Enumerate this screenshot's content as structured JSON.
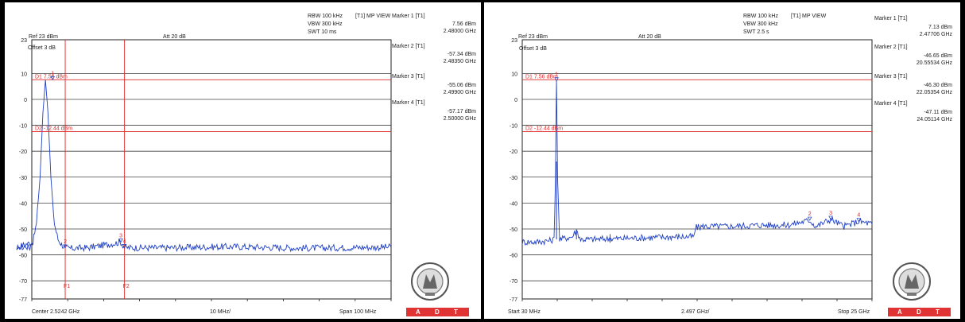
{
  "panels": [
    {
      "header": {
        "rbw": "RBW 100 kHz",
        "vbw": "VBW 300 kHz",
        "swt": "SWT 10 ms",
        "mode": "[T1] MP VIEW",
        "ref": "Ref 23 dBm",
        "att": "Att  20 dB",
        "offset": "Offset 3 dB"
      },
      "footer": {
        "left": "Center 2.5242 GHz",
        "mid": "10 MHz/",
        "right": "Span 100 MHz"
      },
      "markers": [
        {
          "label": "Marker 1 [T1]",
          "level": "7.56 dBm",
          "freq": "2.48000 GHz"
        },
        {
          "label": "Marker 2 [T1]",
          "level": "-57.34 dBm",
          "freq": "2.48350 GHz"
        },
        {
          "label": "Marker 3 [T1]",
          "level": "-55.06 dBm",
          "freq": "2.49900 GHz"
        },
        {
          "label": "Marker 4 [T1]",
          "level": "-57.17 dBm",
          "freq": "2.50000 GHz"
        }
      ],
      "lines": {
        "d1": "D1 7.56 dBm",
        "d2": "D2 -12.44 dBm",
        "f1": "F1",
        "f2": "F2"
      }
    },
    {
      "header": {
        "rbw": "RBW 100 kHz",
        "vbw": "VBW 300 kHz",
        "swt": "SWT 2.5 s",
        "mode": "[T1] MP VIEW",
        "ref": "Ref 23 dBm",
        "att": "Att  20 dB",
        "offset": "Offset 3 dB"
      },
      "footer": {
        "left": "Start 30 MHz",
        "mid": "2.497 GHz/",
        "right": "Stop 25 GHz"
      },
      "markers": [
        {
          "label": "Marker 1 [T1]",
          "level": "7.13 dBm",
          "freq": "2.47706 GHz"
        },
        {
          "label": "Marker 2 [T1]",
          "level": "-46.65 dBm",
          "freq": "20.55534 GHz"
        },
        {
          "label": "Marker 3 [T1]",
          "level": "-46.30 dBm",
          "freq": "22.05354 GHz"
        },
        {
          "label": "Marker 4 [T1]",
          "level": "-47.11 dBm",
          "freq": "24.05114 GHz"
        }
      ],
      "lines": {
        "d1": "D1 7.56 dBm",
        "d2": "D2 -12.44 dBm"
      }
    }
  ],
  "brand": {
    "adt": [
      "A",
      "D",
      "T"
    ]
  },
  "colors": {
    "trace": "#1f3fc4",
    "limit": "#e02828",
    "grid": "#404040",
    "adt": "#e03434"
  },
  "chart_data": [
    {
      "type": "line",
      "x_unit": "GHz",
      "xlim": [
        2.4742,
        2.5742
      ],
      "ylim": [
        -77,
        23
      ],
      "yticks": [
        23,
        10,
        0,
        -10,
        -20,
        -30,
        -40,
        -50,
        -60,
        -70,
        -77
      ],
      "ytick_labels": [
        "23",
        "10",
        "0",
        "-10",
        "-20",
        "-30",
        "-40",
        "-50",
        "-60",
        "-70",
        "-77"
      ],
      "x_divisions": 10,
      "noise_floor": -57.5,
      "series": [
        {
          "x": [
            2.4742,
            2.47,
            2.4745,
            2.4755,
            2.4765,
            2.4773,
            2.478,
            2.4787,
            2.4795,
            2.4805,
            2.4815,
            2.4825,
            2.4835,
            2.485,
            2.49,
            2.499,
            2.5,
            2.51,
            2.53,
            2.55,
            2.5742
          ],
          "y": [
            -57.0,
            -57.0,
            -55.0,
            -48.0,
            -30.0,
            -5.0,
            7.56,
            -5.0,
            -30.0,
            -48.0,
            -54.0,
            -56.0,
            -57.3,
            -57.5,
            -57.2,
            -55.1,
            -57.2,
            -57.3,
            -56.8,
            -57.4,
            -57.0
          ]
        }
      ],
      "markers": [
        {
          "n": "1",
          "x": 2.48,
          "y": 7.56
        },
        {
          "n": "2",
          "x": 2.4835,
          "y": -57.34
        },
        {
          "n": "3",
          "x": 2.499,
          "y": -55.06
        },
        {
          "n": "4",
          "x": 2.5,
          "y": -57.17
        }
      ],
      "hlines": [
        7.56,
        -12.44
      ],
      "vlines": [
        2.4835,
        2.5
      ]
    },
    {
      "type": "line",
      "x_unit": "GHz",
      "xlim": [
        0.03,
        25
      ],
      "ylim": [
        -77,
        23
      ],
      "yticks": [
        23,
        10,
        0,
        -10,
        -20,
        -30,
        -40,
        -50,
        -60,
        -70,
        -77
      ],
      "ytick_labels": [
        "23",
        "10",
        "0",
        "-10",
        "-20",
        "-30",
        "-40",
        "-50",
        "-60",
        "-70",
        "-77"
      ],
      "x_divisions": 10,
      "series": [
        {
          "x": [
            0.03,
            1.0,
            2.0,
            2.3,
            2.4,
            2.477,
            2.55,
            2.7,
            3.6,
            3.9,
            4.2,
            5.0,
            8.0,
            11.0,
            12.3,
            12.4,
            13.0,
            15.0,
            17.0,
            19.0,
            20.55,
            21.0,
            22.05,
            23.0,
            24.05,
            25.0
          ],
          "y": [
            -55.0,
            -55.0,
            -54.5,
            -54.0,
            -30.0,
            7.13,
            -30.0,
            -54.0,
            -53.0,
            -50.5,
            -54.0,
            -54.0,
            -53.5,
            -53.0,
            -53.0,
            -49.5,
            -49.0,
            -49.0,
            -48.5,
            -48.5,
            -46.65,
            -49.0,
            -46.3,
            -49.0,
            -47.11,
            -48.0
          ]
        }
      ],
      "markers": [
        {
          "n": "1",
          "x": 2.47706,
          "y": 7.13
        },
        {
          "n": "2",
          "x": 20.55534,
          "y": -46.65
        },
        {
          "n": "3",
          "x": 22.05354,
          "y": -46.3
        },
        {
          "n": "4",
          "x": 24.05114,
          "y": -47.11
        }
      ],
      "hlines": [
        7.56,
        -12.44
      ],
      "vlines": []
    }
  ]
}
